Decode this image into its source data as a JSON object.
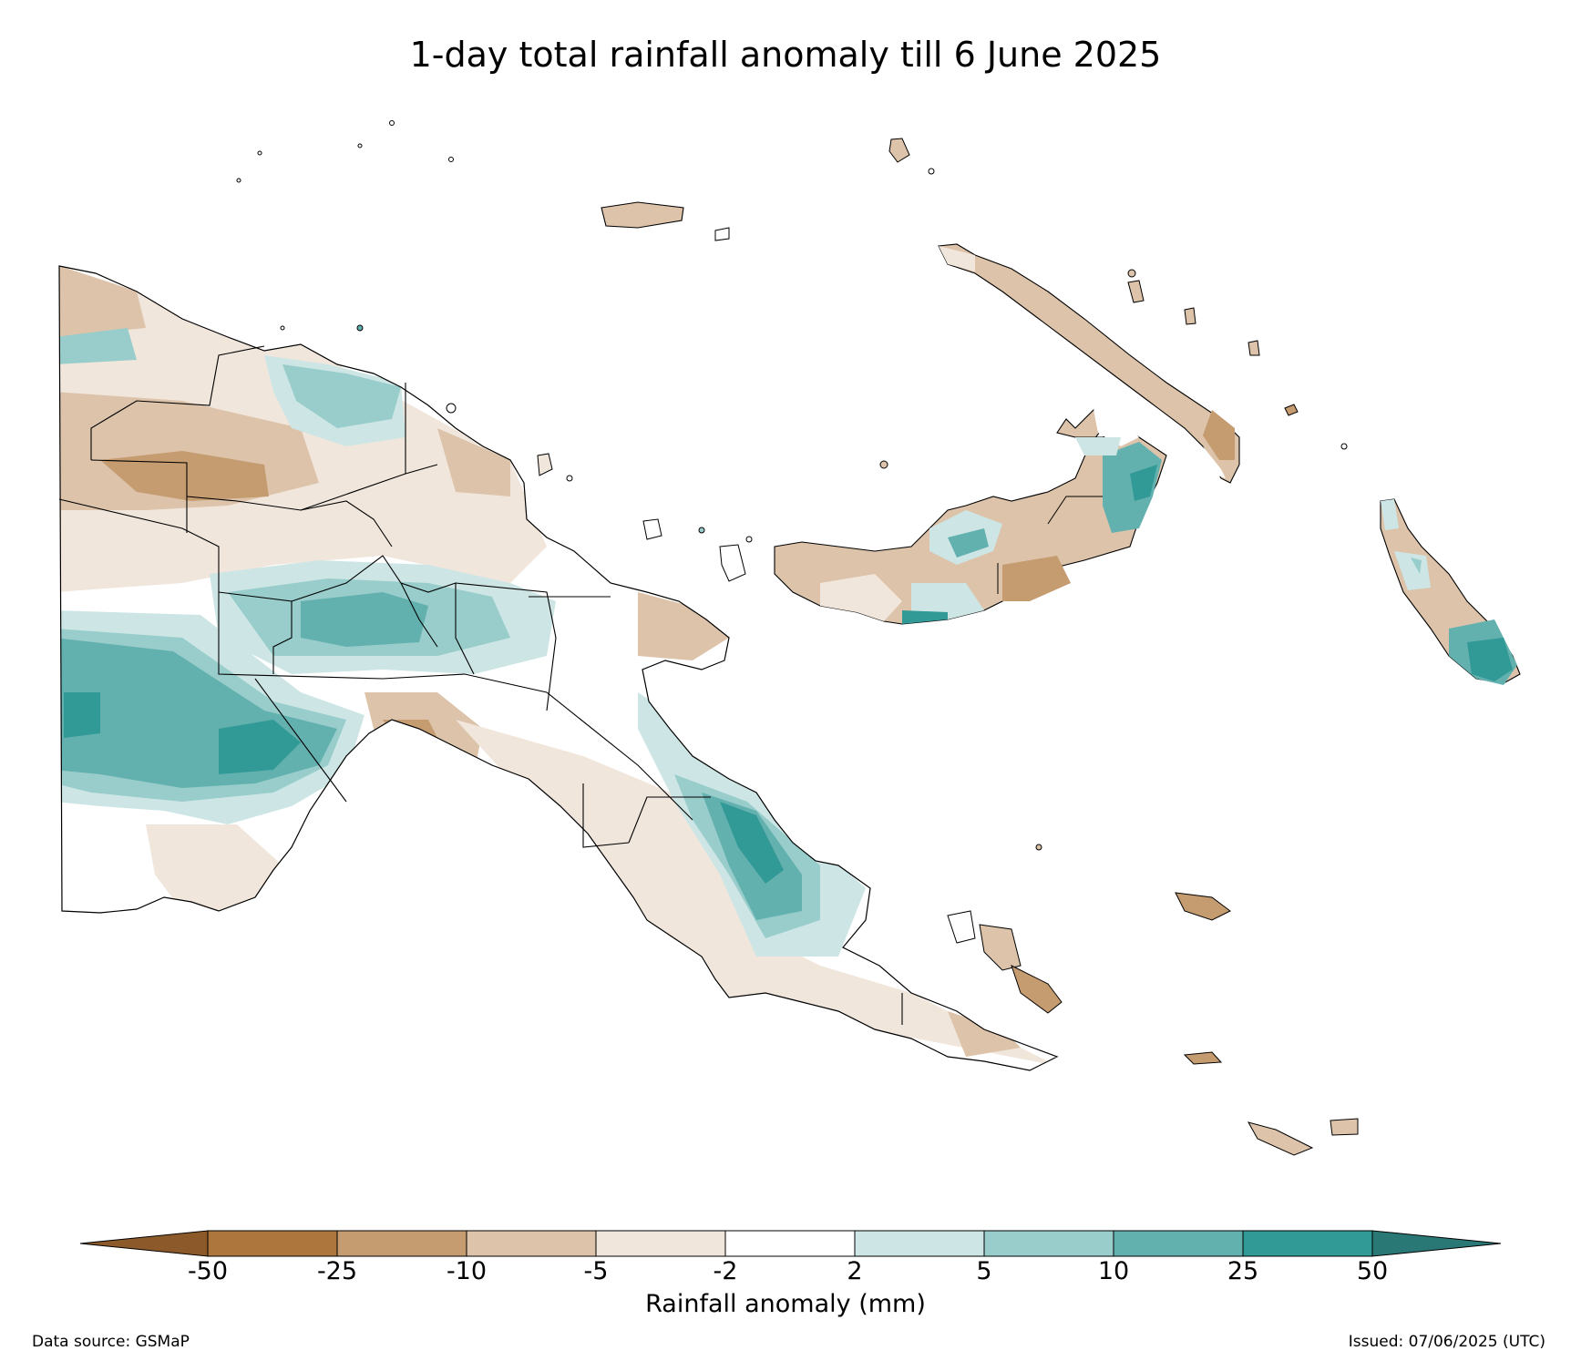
{
  "title": "1-day total rainfall anomaly till 6 June 2025",
  "colorbar": {
    "caption": "Rainfall anomaly (mm)",
    "ticks": [
      "-50",
      "-25",
      "-10",
      "-5",
      "-2",
      "2",
      "5",
      "10",
      "25",
      "50"
    ],
    "bins": [
      {
        "range": "< -50",
        "color": "#8c5a2a"
      },
      {
        "range": "-50 to -25",
        "color": "#ad763c"
      },
      {
        "range": "-25 to -10",
        "color": "#c59b70"
      },
      {
        "range": "-10 to -5",
        "color": "#dcc3aa"
      },
      {
        "range": "-5 to -2",
        "color": "#f1e6dc"
      },
      {
        "range": "-2 to 2",
        "color": "#ffffff"
      },
      {
        "range": "2 to 5",
        "color": "#cde6e5"
      },
      {
        "range": "5 to 10",
        "color": "#98cdcb"
      },
      {
        "range": "10 to 25",
        "color": "#63b1af"
      },
      {
        "range": "25 to 50",
        "color": "#319996"
      },
      {
        "range": "> 50",
        "color": "#2a7876"
      }
    ]
  },
  "footer": {
    "source": "Data source: GSMaP",
    "issued": "Issued: 07/06/2025 (UTC)"
  }
}
